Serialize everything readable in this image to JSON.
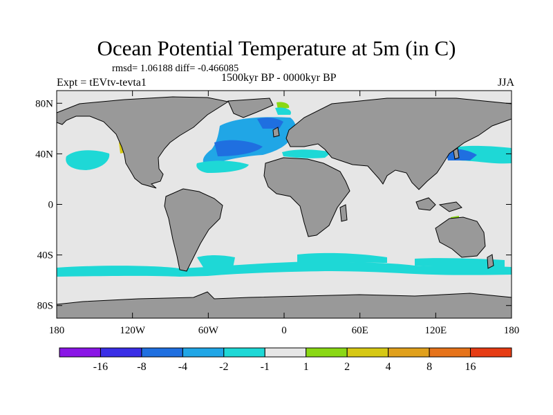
{
  "title": "Ocean Potential Temperature at 5m (in C)",
  "stats_text": "rmsd= 1.06188 diff= -0.466085",
  "experiment_label": "Expt = tEVtv-tevta1",
  "period_label": "1500kyr BP - 0000kyr BP",
  "season_label": "JJA",
  "colors": {
    "ocean_background": "#e6e6e6",
    "land": "#999999",
    "coastline": "#000000",
    "frame": "#000000"
  },
  "latitude_ticks": [
    {
      "value": 80,
      "label": "80N"
    },
    {
      "value": 40,
      "label": "40N"
    },
    {
      "value": 0,
      "label": "0"
    },
    {
      "value": -40,
      "label": "40S"
    },
    {
      "value": -80,
      "label": "80S"
    }
  ],
  "longitude_ticks": [
    {
      "value": -180,
      "label": "180"
    },
    {
      "value": -120,
      "label": "120W"
    },
    {
      "value": -60,
      "label": "60W"
    },
    {
      "value": 0,
      "label": "0"
    },
    {
      "value": 60,
      "label": "60E"
    },
    {
      "value": 120,
      "label": "120E"
    },
    {
      "value": 180,
      "label": "180"
    }
  ],
  "colorbar": {
    "colors": [
      "#8a16e6",
      "#3a2ee6",
      "#1f6fe0",
      "#20a6e6",
      "#1ed8d6",
      "#e6e6e6",
      "#8ad814",
      "#d6c814",
      "#e0a01c",
      "#e6731a",
      "#e63c14"
    ],
    "labels": [
      "-16",
      "-8",
      "-4",
      "-2",
      "-1",
      "1",
      "2",
      "4",
      "8",
      "16"
    ]
  }
}
